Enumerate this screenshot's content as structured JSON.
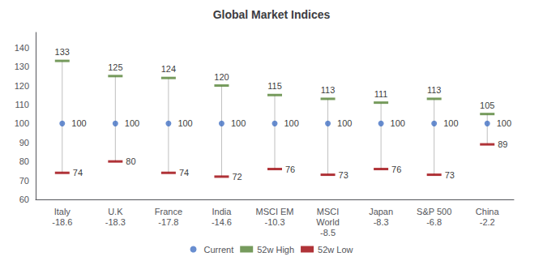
{
  "chart_data": {
    "type": "range",
    "title": "Global Market Indices",
    "categories": [
      "Italy\n-18.6",
      "U.K\n-18.3",
      "France\n-17.8",
      "India\n-14.6",
      "MSCI EM\n-10.3",
      "MSCI\nWorld\n-8.5",
      "Japan\n-8.3",
      "S&P 500\n-6.8",
      "China\n-2.2"
    ],
    "series": [
      {
        "name": "Current",
        "color": "#4472C4",
        "marker": "circle",
        "values": [
          100,
          100,
          100,
          100,
          100,
          100,
          100,
          100,
          100
        ]
      },
      {
        "name": "52w High",
        "color": "#548235",
        "marker": "dash",
        "values": [
          133,
          125,
          124,
          120,
          115,
          113,
          111,
          113,
          105
        ]
      },
      {
        "name": "52w Low",
        "color": "#9C0006",
        "marker": "dash",
        "values": [
          74,
          80,
          74,
          72,
          76,
          73,
          76,
          73,
          89
        ]
      }
    ],
    "color": "#BFBFBF",
    "ylim": [
      60,
      148
    ],
    "yticks": [
      60,
      70,
      80,
      90,
      100,
      110,
      120,
      130,
      140
    ],
    "grid": false,
    "legend": "bottom",
    "data_labels": true
  }
}
